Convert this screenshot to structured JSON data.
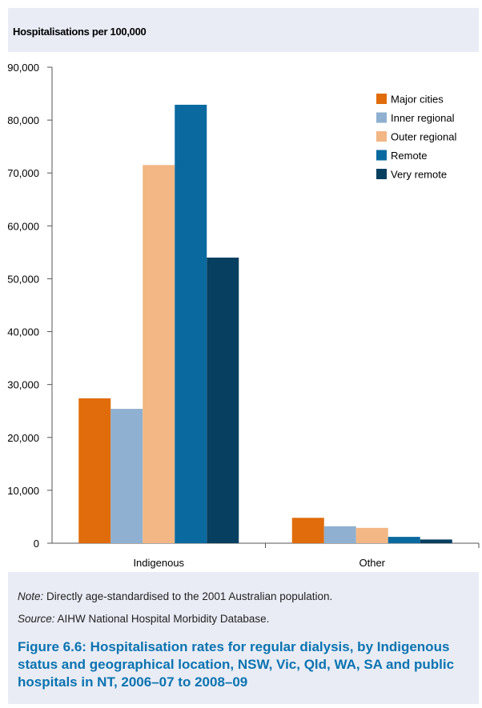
{
  "colors": {
    "major_cities": "#e06c0b",
    "inner_regional": "#8fb0d0",
    "outer_regional": "#f2b784",
    "remote": "#0a6aa0",
    "very_remote": "#063f5f",
    "caption": "#0b73b0",
    "panel": "#e9ecf5"
  },
  "note": {
    "label": "Note:",
    "text": " Directly age-standardised to the 2001 Australian population."
  },
  "source": {
    "label": "Source:",
    "text": " AIHW National Hospital Morbidity Database."
  },
  "caption": "Figure 6.6: Hospitalisation rates for regular dialysis, by Indigenous status and geographical location, NSW, Vic, Qld, WA, SA and public hospitals in NT, 2006–07 to 2008–09",
  "chart_data": {
    "type": "bar",
    "ylabel": "Hospitalisations per 100,000",
    "xlabel": "",
    "categories": [
      "Indigenous",
      "Other"
    ],
    "ylim": [
      0,
      90000
    ],
    "yticks": [
      0,
      10000,
      20000,
      30000,
      40000,
      50000,
      60000,
      70000,
      80000,
      90000
    ],
    "ytick_labels": [
      "0",
      "10,000",
      "20,000",
      "30,000",
      "40,000",
      "50,000",
      "60,000",
      "70,000",
      "80,000",
      "90,000"
    ],
    "legend_position": "top-right",
    "grid": false,
    "series": [
      {
        "name": "Major cities",
        "color": "#e06c0b",
        "values": [
          27400,
          4800
        ]
      },
      {
        "name": "Inner regional",
        "color": "#8fb0d0",
        "values": [
          25400,
          3200
        ]
      },
      {
        "name": "Outer regional",
        "color": "#f2b784",
        "values": [
          71500,
          2900
        ]
      },
      {
        "name": "Remote",
        "color": "#0a6aa0",
        "values": [
          82900,
          1200
        ]
      },
      {
        "name": "Very remote",
        "color": "#063f5f",
        "values": [
          54000,
          700
        ]
      }
    ]
  }
}
